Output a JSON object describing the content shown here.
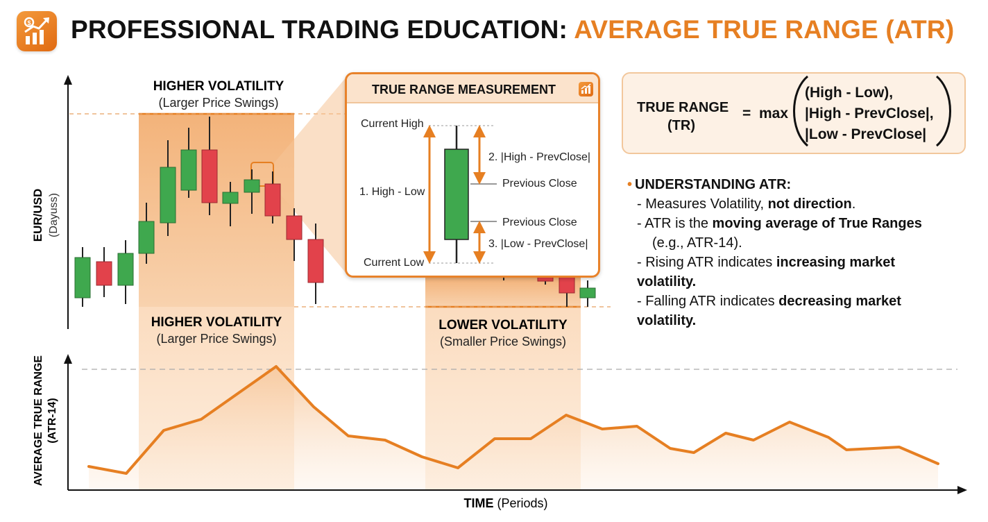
{
  "header": {
    "title_part1": "PROFESSIONAL TRADING EDUCATION:",
    "title_part2": "AVERAGE TRUE RANGE (ATR)",
    "accent_color": "#e67f22",
    "logo_icon": "chart-growth-icon"
  },
  "price_chart": {
    "y_label": "EUR/USD",
    "y_sublabel": "(Dayuss)",
    "zone_high_top": {
      "title": "HIGHER VOLATILITY",
      "subtitle": "(Larger Price Swings)"
    },
    "zone_high_bottom": {
      "title": "HIGHER VOLATILITY",
      "subtitle": "(Larger Price Swings)"
    },
    "zone_low": {
      "title": "LOWER VOLATILITY",
      "subtitle": "(Smaller Price Swings)"
    }
  },
  "callout": {
    "title": "TRUE RANGE MEASUREMENT",
    "current_high": "Current High",
    "current_low": "Current Low",
    "high_low": "1. High - Low",
    "high_prevclose": "2. |High - PrevClose|",
    "low_prevclose": "3. |Low - PrevClose|",
    "prev_close_top": "Previous Close",
    "prev_close_bottom": "Previous Close"
  },
  "formula": {
    "label_line1": "TRUE RANGE",
    "label_line2": "(TR)",
    "equals": "=",
    "func": "max",
    "term1": "(High - Low),",
    "term2": "|High - PrevClose|,",
    "term3": "|Low - PrevClose|"
  },
  "understanding": {
    "title": "UNDERSTANDING ATR:",
    "item1_pre": "- Measures Volatility, ",
    "item1_bold": "not direction",
    "item1_post": ".",
    "item2_pre": "- ATR is the ",
    "item2_bold": "moving average of True Ranges",
    "item2_post": "(e.g., ATR-14).",
    "item3_pre": "- Rising ATR indicates ",
    "item3_bold": "increasing market volatility.",
    "item4_pre": "- Falling ATR indicates ",
    "item4_bold": "decreasing market volatility."
  },
  "atr_chart": {
    "y_label": "AVERAGE TRUE RANGE",
    "y_sublabel": "(ATR-14)",
    "x_label": "TIME",
    "x_sublabel": "(Periods)"
  },
  "colors": {
    "bull": "#3fa84e",
    "bear": "#e2424b",
    "orange": "#e67f22",
    "zone_fill": "#f6c89a",
    "ink": "#111111"
  }
}
